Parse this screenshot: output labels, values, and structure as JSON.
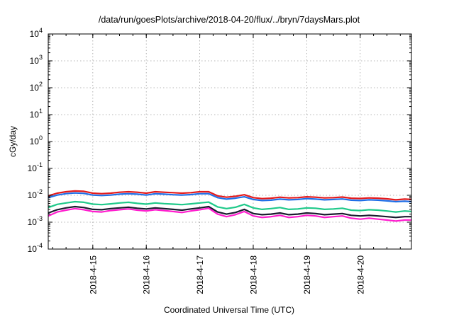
{
  "chart_data": {
    "type": "line",
    "title": "/data/run/goesPlots/archive/2018-04-20/flux/../bryn/7daysMars.plot",
    "xlabel": "Coordinated Universal Time (UTC)",
    "ylabel": "cGy/day",
    "yscale": "log",
    "ylim_exponents": [
      -4,
      4
    ],
    "y_tick_labels": [
      {
        "base": "10",
        "exp": "4",
        "value": 10000
      },
      {
        "base": "10",
        "exp": "3",
        "value": 1000
      },
      {
        "base": "10",
        "exp": "2",
        "value": 100
      },
      {
        "base": "10",
        "exp": "1",
        "value": 10
      },
      {
        "base": "10",
        "exp": "0",
        "value": 1
      },
      {
        "base": "10",
        "exp": "-1",
        "value": 0.1
      },
      {
        "base": "10",
        "exp": "-2",
        "value": 0.01
      },
      {
        "base": "10",
        "exp": "-3",
        "value": 0.001
      },
      {
        "base": "10",
        "exp": "-4",
        "value": 0.0001
      }
    ],
    "xlim": [
      "2018-04-14T04:00",
      "2018-04-20T23:00"
    ],
    "x_tick_labels": [
      "2018-4-15",
      "2018-4-16",
      "2018-4-17",
      "2018-4-18",
      "2018-4-19",
      "2018-4-20"
    ],
    "x_tick_dates": [
      "2018-04-15",
      "2018-04-16",
      "2018-04-17",
      "2018-04-18",
      "2018-04-19",
      "2018-04-20"
    ],
    "grid": true,
    "legend": "none",
    "x": [
      "2018-04-14T04:00",
      "2018-04-14T08:00",
      "2018-04-14T12:00",
      "2018-04-14T16:00",
      "2018-04-14T20:00",
      "2018-04-15T00:00",
      "2018-04-15T04:00",
      "2018-04-15T08:00",
      "2018-04-15T12:00",
      "2018-04-15T16:00",
      "2018-04-15T20:00",
      "2018-04-16T00:00",
      "2018-04-16T04:00",
      "2018-04-16T08:00",
      "2018-04-16T12:00",
      "2018-04-16T16:00",
      "2018-04-16T20:00",
      "2018-04-17T00:00",
      "2018-04-17T04:00",
      "2018-04-17T08:00",
      "2018-04-17T12:00",
      "2018-04-17T16:00",
      "2018-04-17T20:00",
      "2018-04-18T00:00",
      "2018-04-18T04:00",
      "2018-04-18T08:00",
      "2018-04-18T12:00",
      "2018-04-18T16:00",
      "2018-04-18T20:00",
      "2018-04-19T00:00",
      "2018-04-19T04:00",
      "2018-04-19T08:00",
      "2018-04-19T12:00",
      "2018-04-19T16:00",
      "2018-04-19T20:00",
      "2018-04-20T00:00",
      "2018-04-20T04:00",
      "2018-04-20T08:00",
      "2018-04-20T12:00",
      "2018-04-20T16:00",
      "2018-04-20T20:00",
      "2018-04-20T23:00"
    ],
    "series": [
      {
        "color": "#e41a1c",
        "values": [
          0.0095,
          0.012,
          0.0135,
          0.0145,
          0.014,
          0.012,
          0.0115,
          0.012,
          0.013,
          0.0135,
          0.013,
          0.012,
          0.0135,
          0.013,
          0.0125,
          0.012,
          0.0125,
          0.0135,
          0.0135,
          0.0095,
          0.0085,
          0.0092,
          0.0105,
          0.0082,
          0.0075,
          0.0078,
          0.0085,
          0.008,
          0.0082,
          0.0088,
          0.0085,
          0.008,
          0.0082,
          0.0086,
          0.0078,
          0.0076,
          0.008,
          0.0078,
          0.0074,
          0.0068,
          0.0072,
          0.007
        ]
      },
      {
        "color": "#1f6fe8",
        "values": [
          0.0082,
          0.0102,
          0.0115,
          0.0122,
          0.0118,
          0.0102,
          0.0098,
          0.0102,
          0.011,
          0.0114,
          0.011,
          0.0102,
          0.0114,
          0.011,
          0.0105,
          0.0102,
          0.0106,
          0.0114,
          0.0115,
          0.0082,
          0.0072,
          0.0078,
          0.0088,
          0.007,
          0.0064,
          0.0066,
          0.0072,
          0.0068,
          0.007,
          0.0075,
          0.0072,
          0.0068,
          0.007,
          0.0073,
          0.0066,
          0.0064,
          0.0068,
          0.0066,
          0.0062,
          0.0058,
          0.006,
          0.0058
        ]
      },
      {
        "color": "#1fc98a",
        "values": [
          0.0035,
          0.0046,
          0.0052,
          0.0058,
          0.0055,
          0.0047,
          0.0045,
          0.0048,
          0.0052,
          0.0055,
          0.005,
          0.0047,
          0.0052,
          0.0049,
          0.0047,
          0.0045,
          0.0048,
          0.0052,
          0.0056,
          0.0037,
          0.0032,
          0.0036,
          0.0046,
          0.0034,
          0.003,
          0.0032,
          0.0035,
          0.003,
          0.0031,
          0.0034,
          0.0033,
          0.003,
          0.0031,
          0.0033,
          0.0028,
          0.0027,
          0.0029,
          0.0028,
          0.0026,
          0.0024,
          0.0026,
          0.0025
        ]
      },
      {
        "color": "#1a1a2e",
        "values": [
          0.0022,
          0.0029,
          0.0034,
          0.0038,
          0.0035,
          0.003,
          0.0029,
          0.0032,
          0.0034,
          0.0036,
          0.0033,
          0.0031,
          0.0034,
          0.0032,
          0.003,
          0.0028,
          0.0031,
          0.0034,
          0.0038,
          0.0024,
          0.002,
          0.0023,
          0.003,
          0.0021,
          0.0019,
          0.002,
          0.0022,
          0.0019,
          0.002,
          0.0022,
          0.0021,
          0.0019,
          0.002,
          0.0021,
          0.0018,
          0.0017,
          0.0018,
          0.0017,
          0.0016,
          0.0015,
          0.0016,
          0.0016
        ]
      },
      {
        "color": "#ff1dce",
        "values": [
          0.0017,
          0.0024,
          0.0028,
          0.0032,
          0.0029,
          0.0025,
          0.0024,
          0.0027,
          0.0029,
          0.0031,
          0.0028,
          0.0026,
          0.0029,
          0.0027,
          0.0025,
          0.0023,
          0.0026,
          0.0029,
          0.0033,
          0.002,
          0.0016,
          0.0019,
          0.0025,
          0.0017,
          0.0015,
          0.0016,
          0.0018,
          0.0015,
          0.0016,
          0.0018,
          0.0017,
          0.0015,
          0.0016,
          0.0017,
          0.0014,
          0.0013,
          0.0014,
          0.0013,
          0.0012,
          0.0011,
          0.0012,
          0.0012
        ]
      }
    ]
  }
}
